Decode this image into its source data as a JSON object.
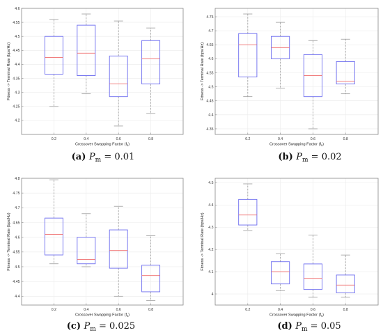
{
  "chart_data": [
    {
      "type": "box",
      "caption": {
        "letter": "(a)",
        "param": "P",
        "sub": "m",
        "eq": "= 0.01"
      },
      "xlabel": "Crossover Swapping Factor (f",
      "xlabel_sub": "s",
      "xlabel_end": ")",
      "ylabel": "Fitness -> Terminal Rate (bps/Hz)",
      "categories": [
        "0.2",
        "0.4",
        "0.6",
        "0.8"
      ],
      "ylim": [
        4.15,
        4.6
      ],
      "yticks": [
        "4.2",
        "4.25",
        "4.3",
        "4.35",
        "4.4",
        "4.45",
        "4.5",
        "4.55",
        "4.6"
      ],
      "grid": true,
      "boxes": [
        {
          "whislo": 4.25,
          "q1": 4.365,
          "med": 4.425,
          "q3": 4.5,
          "whishi": 4.56
        },
        {
          "whislo": 4.295,
          "q1": 4.36,
          "med": 4.44,
          "q3": 4.54,
          "whishi": 4.58
        },
        {
          "whislo": 4.18,
          "q1": 4.285,
          "med": 4.33,
          "q3": 4.43,
          "whishi": 4.555
        },
        {
          "whislo": 4.225,
          "q1": 4.33,
          "med": 4.42,
          "q3": 4.485,
          "whishi": 4.53
        }
      ]
    },
    {
      "type": "box",
      "caption": {
        "letter": "(b)",
        "param": "P",
        "sub": "m",
        "eq": "= 0.02"
      },
      "xlabel": "Crossover Swapping Factor (f",
      "xlabel_sub": "s",
      "xlabel_end": ")",
      "ylabel": "Fitness -> Terminal Rate (bps/Hz)",
      "categories": [
        "0.2",
        "0.4",
        "0.6",
        "0.8"
      ],
      "ylim": [
        4.33,
        4.78
      ],
      "yticks": [
        "4.35",
        "4.4",
        "4.45",
        "4.5",
        "4.55",
        "4.6",
        "4.65",
        "4.7",
        "4.75"
      ],
      "grid": true,
      "boxes": [
        {
          "whislo": 4.465,
          "q1": 4.535,
          "med": 4.65,
          "q3": 4.69,
          "whishi": 4.76
        },
        {
          "whislo": 4.495,
          "q1": 4.6,
          "med": 4.64,
          "q3": 4.68,
          "whishi": 4.73
        },
        {
          "whislo": 4.35,
          "q1": 4.465,
          "med": 4.54,
          "q3": 4.615,
          "whishi": 4.665
        },
        {
          "whislo": 4.475,
          "q1": 4.51,
          "med": 4.52,
          "q3": 4.59,
          "whishi": 4.67
        }
      ]
    },
    {
      "type": "box",
      "caption": {
        "letter": "(c)",
        "param": "P",
        "sub": "m",
        "eq": "= 0.025"
      },
      "xlabel": "Crossover Swapping Factor (f",
      "xlabel_sub": "s",
      "xlabel_end": ")",
      "ylabel": "Fitness -> Terminal Rate (bps/Hz)",
      "categories": [
        "0.2",
        "0.4",
        "0.6",
        "0.8"
      ],
      "ylim": [
        4.37,
        4.8
      ],
      "yticks": [
        "4.4",
        "4.45",
        "4.5",
        "4.55",
        "4.6",
        "4.65",
        "4.7",
        "4.75",
        "4.8"
      ],
      "grid": true,
      "boxes": [
        {
          "whislo": 4.51,
          "q1": 4.54,
          "med": 4.61,
          "q3": 4.665,
          "whishi": 4.795
        },
        {
          "whislo": 4.5,
          "q1": 4.51,
          "med": 4.525,
          "q3": 4.6,
          "whishi": 4.68
        },
        {
          "whislo": 4.4,
          "q1": 4.495,
          "med": 4.555,
          "q3": 4.625,
          "whishi": 4.705
        },
        {
          "whislo": 4.385,
          "q1": 4.415,
          "med": 4.47,
          "q3": 4.505,
          "whishi": 4.605
        }
      ]
    },
    {
      "type": "box",
      "caption": {
        "letter": "(d)",
        "param": "P",
        "sub": "m",
        "eq": "= 0.05"
      },
      "xlabel": "Crossover Swapping Factor (f",
      "xlabel_sub": "s",
      "xlabel_end": ")",
      "ylabel": "Fitness -> Terminal Rate (bps/Hz)",
      "categories": [
        "0.2",
        "0.4",
        "0.6",
        "0.8"
      ],
      "ylim": [
        3.95,
        4.52
      ],
      "yticks": [
        "4",
        "4.1",
        "4.2",
        "4.3",
        "4.4",
        "4.5"
      ],
      "grid": true,
      "boxes": [
        {
          "whislo": 4.285,
          "q1": 4.31,
          "med": 4.355,
          "q3": 4.425,
          "whishi": 4.495
        },
        {
          "whislo": 4.015,
          "q1": 4.045,
          "med": 4.1,
          "q3": 4.145,
          "whishi": 4.18
        },
        {
          "whislo": 3.985,
          "q1": 4.02,
          "med": 4.07,
          "q3": 4.135,
          "whishi": 4.265
        },
        {
          "whislo": 3.985,
          "q1": 4.005,
          "med": 4.04,
          "q3": 4.085,
          "whishi": 4.175
        }
      ]
    }
  ],
  "colors": {
    "box": "#6b6bef",
    "median": "#ef6b6b",
    "whisker": "#9a9a9a",
    "frame": "#888888",
    "grid": "#ebebeb"
  }
}
